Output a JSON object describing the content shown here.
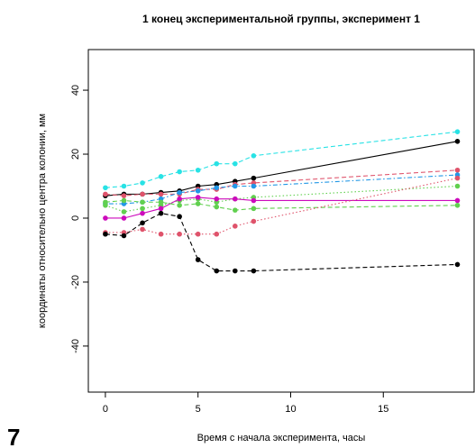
{
  "chart_data": {
    "type": "line",
    "title": "1 конец экспериментальной группы, эксперимент 1",
    "x_label": "Время с начала эксперимента, часы",
    "y_label": "координаты относительно центра колонии, мм",
    "panel_label": "7",
    "x": [
      0,
      1,
      2,
      3,
      4,
      5,
      6,
      7,
      8,
      19
    ],
    "series": [
      {
        "color": "#28E2E5",
        "linestyle": "dashed",
        "values": [
          9.5,
          10,
          11,
          13,
          14.5,
          15,
          17,
          17,
          19.5,
          27
        ]
      },
      {
        "color": "#000000",
        "linestyle": "solid",
        "values": [
          7,
          7.5,
          7.5,
          8,
          8.5,
          10,
          10.5,
          11.5,
          12.5,
          24
        ]
      },
      {
        "color": "#DF536B",
        "linestyle": "dashed",
        "values": [
          7.5,
          7,
          7.5,
          7.5,
          7.5,
          9,
          9,
          10.5,
          11,
          15
        ]
      },
      {
        "color": "#2297E6",
        "linestyle": "dotdash",
        "values": [
          4.5,
          4.5,
          5,
          6,
          8,
          8.5,
          9.5,
          10,
          10,
          13.5
        ]
      },
      {
        "color": "#61D04F",
        "linestyle": "dotted",
        "values": [
          4,
          2,
          3,
          4,
          5.5,
          6,
          5,
          6,
          6.5,
          10
        ]
      },
      {
        "color": "#CD0BBC",
        "linestyle": "solid",
        "values": [
          0,
          0,
          1.5,
          3,
          6,
          6.5,
          6,
          6,
          5.5,
          5.5
        ]
      },
      {
        "color": "#61D04F",
        "linestyle": "dashed",
        "values": [
          5,
          5.5,
          5,
          5,
          4,
          4.5,
          3.5,
          2.5,
          3,
          4
        ]
      },
      {
        "color": "#DF536B",
        "linestyle": "dotted",
        "values": [
          -4.5,
          -4.5,
          -3.5,
          -5,
          -5,
          -5,
          -5,
          -2.5,
          -1,
          12.5
        ]
      },
      {
        "color": "#000000",
        "linestyle": "dashed",
        "values": [
          -5,
          -5.5,
          -1.5,
          1.5,
          0.5,
          -13,
          -16.5,
          -16.5,
          -16.5,
          -14.5
        ]
      }
    ],
    "xlim": [
      -0.92,
      19.9
    ],
    "ylim": [
      -54.4,
      52.7
    ],
    "xticks": [
      0,
      5,
      10,
      15
    ],
    "yticks": [
      -40,
      -20,
      0,
      20,
      40
    ]
  }
}
